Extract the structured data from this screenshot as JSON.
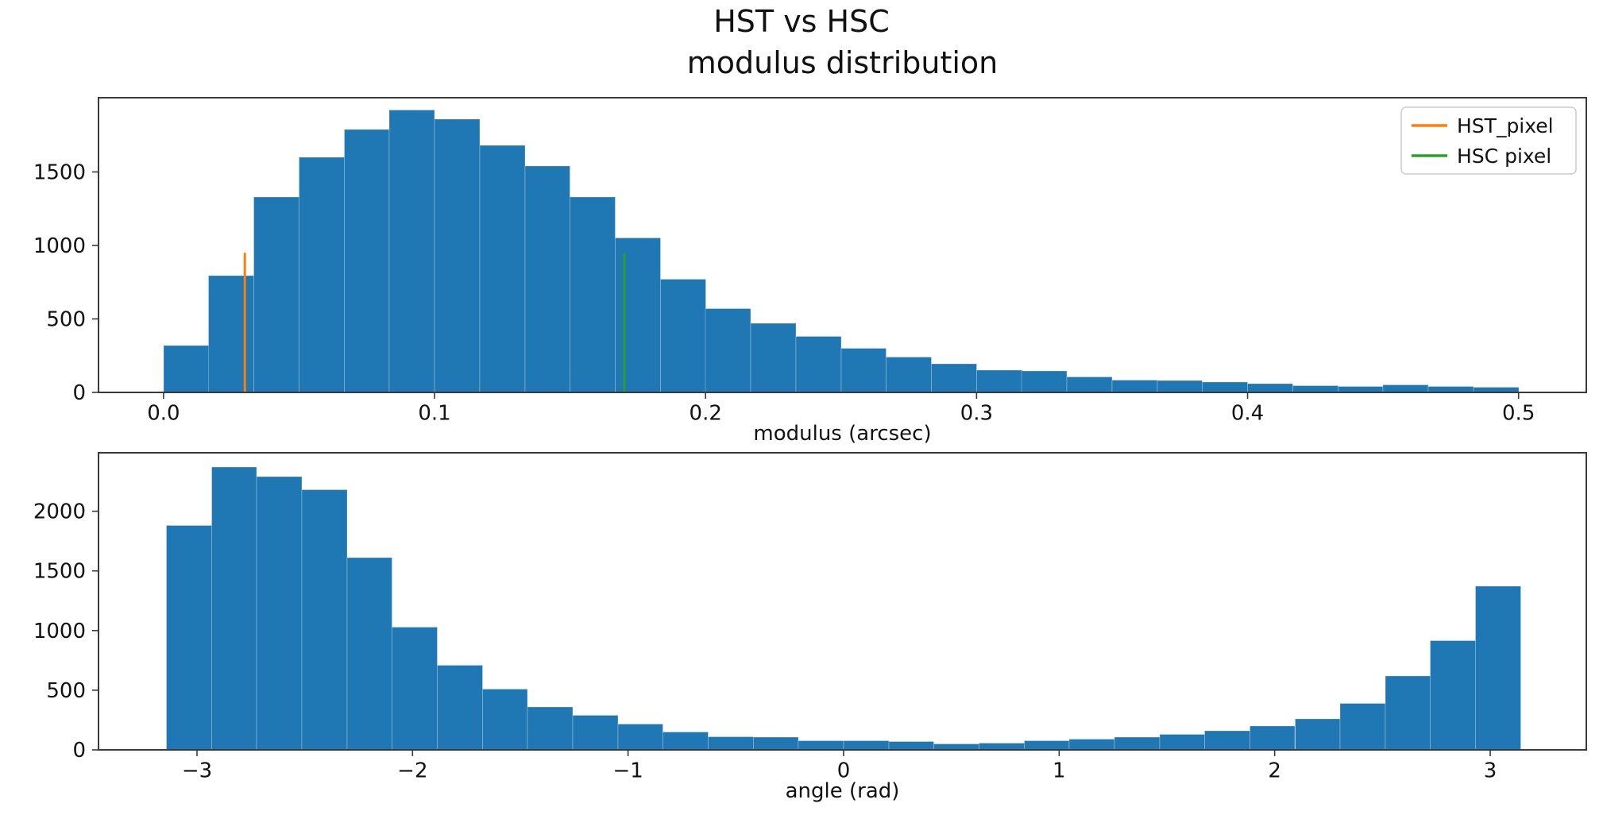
{
  "figure": {
    "suptitle": "HST vs HSC",
    "background": "#ffffff"
  },
  "chart_data": [
    {
      "type": "bar",
      "id": "modulus",
      "title": "modulus distribution",
      "xlabel": "modulus (arcsec)",
      "ylabel": "",
      "bar_color": "#1f77b4",
      "grid": false,
      "bin_start": 0.0,
      "bin_width": 0.0166667,
      "values": [
        320,
        795,
        1330,
        1600,
        1790,
        1920,
        1860,
        1680,
        1540,
        1330,
        1050,
        770,
        570,
        470,
        380,
        300,
        240,
        195,
        150,
        145,
        105,
        85,
        80,
        70,
        60,
        45,
        40,
        50,
        40,
        35
      ],
      "xlim": [
        -0.024,
        0.525
      ],
      "ylim": [
        0,
        2005
      ],
      "xticks": [
        0,
        0.1,
        0.2,
        0.3,
        0.4,
        0.5
      ],
      "xtick_labels": [
        "0.0",
        "0.1",
        "0.2",
        "0.3",
        "0.4",
        "0.5"
      ],
      "yticks": [
        0,
        500,
        1000,
        1500
      ],
      "ytick_labels": [
        "0",
        "500",
        "1000",
        "1500"
      ],
      "vlines": [
        {
          "x": 0.03,
          "top": 950,
          "color": "#ff7f0e",
          "label": "HST_pixel"
        },
        {
          "x": 0.17,
          "top": 950,
          "color": "#2ca02c",
          "label": "HSC pixel"
        }
      ],
      "legend": {
        "position": "upper right",
        "entries": [
          {
            "label": "HST_pixel",
            "color": "#ff7f0e"
          },
          {
            "label": "HSC pixel",
            "color": "#2ca02c"
          }
        ]
      }
    },
    {
      "type": "bar",
      "id": "angle",
      "title": "",
      "xlabel": "angle (rad)",
      "ylabel": "",
      "bar_color": "#1f77b4",
      "grid": false,
      "bin_start": -3.141593,
      "bin_width": 0.2094395,
      "values": [
        1880,
        2370,
        2290,
        2180,
        1610,
        1030,
        710,
        510,
        360,
        290,
        215,
        150,
        110,
        105,
        75,
        75,
        70,
        50,
        55,
        75,
        90,
        105,
        130,
        160,
        200,
        260,
        390,
        620,
        915,
        1370
      ],
      "xlim": [
        -3.457,
        3.446
      ],
      "ylim": [
        0,
        2490
      ],
      "xticks": [
        -3,
        -2,
        -1,
        0,
        1,
        2,
        3
      ],
      "xtick_labels": [
        "−3",
        "−2",
        "−1",
        "0",
        "1",
        "2",
        "3"
      ],
      "yticks": [
        0,
        500,
        1000,
        1500,
        2000
      ],
      "ytick_labels": [
        "0",
        "500",
        "1000",
        "1500",
        "2000"
      ]
    }
  ]
}
